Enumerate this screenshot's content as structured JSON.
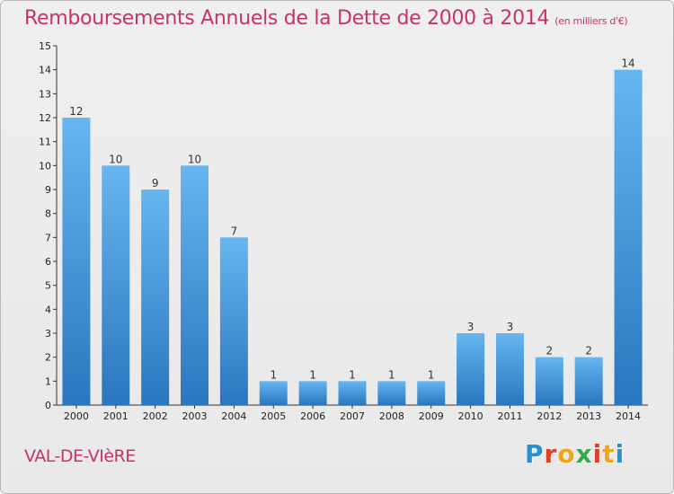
{
  "header": {
    "title": "Remboursements Annuels de la Dette de 2000 à 2014",
    "subtitle": "(en milliers d'€)"
  },
  "footer": {
    "commune": "VAL-DE-VIèRE",
    "logo_text": "Proxiti",
    "logo_colors": [
      "#2a8fd0",
      "#e0402a",
      "#f2a41c",
      "#3aa84a",
      "#e0402a",
      "#f2a41c",
      "#2a8fd0"
    ]
  },
  "chart_data": {
    "type": "bar",
    "categories": [
      "2000",
      "2001",
      "2002",
      "2003",
      "2004",
      "2005",
      "2006",
      "2007",
      "2008",
      "2009",
      "2010",
      "2011",
      "2012",
      "2013",
      "2014"
    ],
    "values": [
      12,
      10,
      9,
      10,
      7,
      1,
      1,
      1,
      1,
      1,
      3,
      3,
      2,
      2,
      14
    ],
    "title": "Remboursements Annuels de la Dette de 2000 à 2014",
    "ylim": [
      0,
      15
    ],
    "yticks": [
      0,
      1,
      2,
      3,
      4,
      5,
      6,
      7,
      8,
      9,
      10,
      11,
      12,
      13,
      14,
      15
    ],
    "grid": false,
    "bar_color_top": "#66b6f0",
    "bar_color_bottom": "#2a76bf"
  }
}
